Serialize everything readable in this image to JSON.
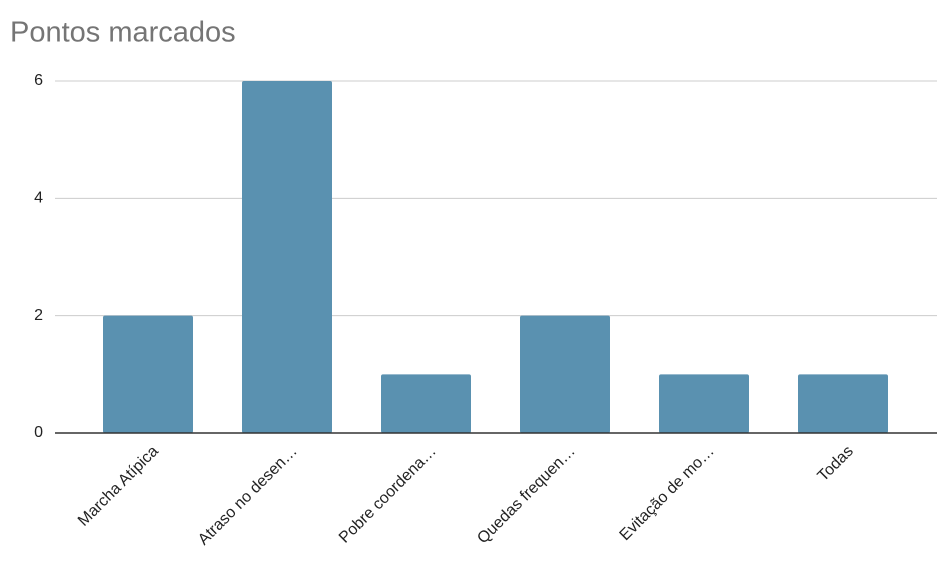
{
  "chart_data": {
    "type": "bar",
    "title": "Pontos marcados",
    "categories": [
      "Marcha Atípica",
      "Atraso no desen…",
      "Pobre coordena…",
      "Quedas frequen…",
      "Evitação de mo…",
      "Todas"
    ],
    "values": [
      2,
      6,
      1,
      2,
      1,
      1
    ],
    "color": "#5a91b0",
    "ylim": [
      0,
      6
    ],
    "yticks": [
      0,
      2,
      4,
      6
    ],
    "grid": true
  }
}
